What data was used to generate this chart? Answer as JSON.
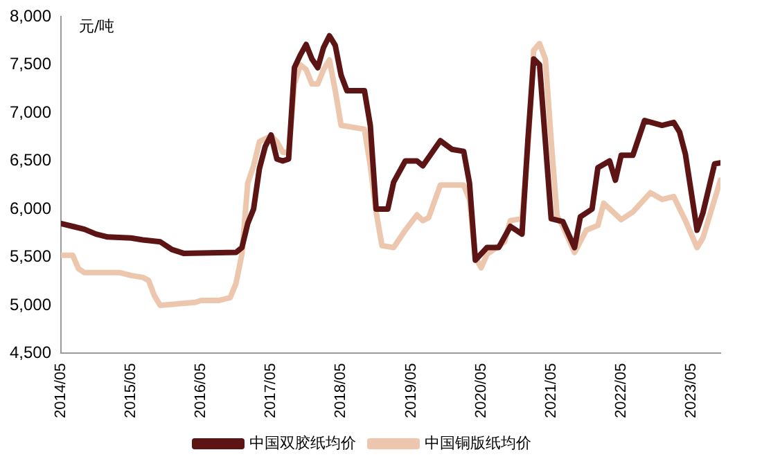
{
  "chart_data": {
    "type": "line",
    "ylabel": "元/吨",
    "legend": "bottom",
    "grid": false,
    "marker": "none",
    "line_style": "solid",
    "xlim": [
      "2014-05",
      "2023-10"
    ],
    "xticks": [
      {
        "value": "2014-05",
        "label": "2014/05"
      },
      {
        "value": "2015-05",
        "label": "2015/05"
      },
      {
        "value": "2016-05",
        "label": "2016/05"
      },
      {
        "value": "2017-05",
        "label": "2017/05"
      },
      {
        "value": "2018-05",
        "label": "2018/05"
      },
      {
        "value": "2019-05",
        "label": "2019/05"
      },
      {
        "value": "2020-05",
        "label": "2020/05"
      },
      {
        "value": "2021-05",
        "label": "2021/05"
      },
      {
        "value": "2022-05",
        "label": "2022/05"
      },
      {
        "value": "2023-05",
        "label": "2023/05"
      }
    ],
    "ylim": [
      4500,
      8000
    ],
    "yticks": [
      {
        "value": 4500,
        "label": "4,500"
      },
      {
        "value": 5000,
        "label": "5,000"
      },
      {
        "value": 5500,
        "label": "5,500"
      },
      {
        "value": 6000,
        "label": "6,000"
      },
      {
        "value": 6500,
        "label": "6,500"
      },
      {
        "value": 7000,
        "label": "7,000"
      },
      {
        "value": 7500,
        "label": "7,500"
      },
      {
        "value": 8000,
        "label": "8,000"
      }
    ],
    "series": [
      {
        "name": "中国双胶纸均价",
        "color": "#5c1414",
        "x": [
          "2014-05",
          "2014-07",
          "2014-09",
          "2014-11",
          "2015-01",
          "2015-05",
          "2015-07",
          "2015-10",
          "2015-12",
          "2016-02",
          "2016-11",
          "2016-12",
          "2017-01",
          "2017-02",
          "2017-03",
          "2017-04",
          "2017-05",
          "2017-06",
          "2017-07",
          "2017-08",
          "2017-09",
          "2017-10",
          "2017-11",
          "2017-12",
          "2018-01",
          "2018-02",
          "2018-03",
          "2018-04",
          "2018-05",
          "2018-06",
          "2018-09",
          "2018-10",
          "2018-11",
          "2019-01",
          "2019-02",
          "2019-04",
          "2019-06",
          "2019-07",
          "2019-10",
          "2019-12",
          "2020-02",
          "2020-03",
          "2020-04",
          "2020-06",
          "2020-08",
          "2020-10",
          "2020-12",
          "2021-01",
          "2021-02",
          "2021-03",
          "2021-05",
          "2021-07",
          "2021-09",
          "2021-10",
          "2021-12",
          "2022-01",
          "2022-03",
          "2022-04",
          "2022-05",
          "2022-07",
          "2022-09",
          "2022-12",
          "2023-02",
          "2023-03",
          "2023-04",
          "2023-06",
          "2023-07",
          "2023-09",
          "2023-10"
        ],
        "values": [
          5850,
          5820,
          5790,
          5740,
          5710,
          5700,
          5680,
          5660,
          5580,
          5540,
          5550,
          5600,
          5850,
          6000,
          6420,
          6650,
          6770,
          6520,
          6500,
          6520,
          7470,
          7600,
          7710,
          7560,
          7470,
          7680,
          7800,
          7700,
          7390,
          7230,
          7230,
          6870,
          6000,
          6000,
          6280,
          6500,
          6500,
          6450,
          6710,
          6620,
          6600,
          6270,
          5470,
          5600,
          5600,
          5820,
          5740,
          6710,
          7560,
          7500,
          5900,
          5870,
          5600,
          5920,
          6000,
          6430,
          6500,
          6300,
          6560,
          6560,
          6920,
          6870,
          6900,
          6800,
          6570,
          5780,
          5960,
          6470,
          6480
        ]
      },
      {
        "name": "中国铜版纸均价",
        "color": "#ecc7ad",
        "x": [
          "2014-05",
          "2014-07",
          "2014-08",
          "2014-09",
          "2015-03",
          "2015-05",
          "2015-07",
          "2015-08",
          "2015-09",
          "2015-10",
          "2016-04",
          "2016-05",
          "2016-08",
          "2016-10",
          "2016-11",
          "2016-12",
          "2017-01",
          "2017-02",
          "2017-03",
          "2017-05",
          "2017-06",
          "2017-07",
          "2017-08",
          "2017-09",
          "2017-10",
          "2017-11",
          "2017-12",
          "2018-01",
          "2018-02",
          "2018-03",
          "2018-04",
          "2018-05",
          "2018-09",
          "2018-10",
          "2018-11",
          "2018-12",
          "2019-02",
          "2019-04",
          "2019-06",
          "2019-07",
          "2019-08",
          "2019-10",
          "2020-02",
          "2020-03",
          "2020-04",
          "2020-05",
          "2020-06",
          "2020-09",
          "2020-10",
          "2020-12",
          "2021-01",
          "2021-02",
          "2021-03",
          "2021-04",
          "2021-05",
          "2021-06",
          "2021-07",
          "2021-09",
          "2021-11",
          "2022-01",
          "2022-02",
          "2022-05",
          "2022-07",
          "2022-10",
          "2022-12",
          "2023-02",
          "2023-04",
          "2023-06",
          "2023-07",
          "2023-10"
        ],
        "values": [
          5520,
          5520,
          5380,
          5340,
          5340,
          5310,
          5290,
          5260,
          5100,
          5000,
          5030,
          5050,
          5050,
          5080,
          5230,
          5530,
          6270,
          6450,
          6700,
          6760,
          6700,
          6590,
          6590,
          7300,
          7500,
          7450,
          7300,
          7300,
          7450,
          7550,
          7230,
          6870,
          6830,
          6450,
          5970,
          5620,
          5600,
          5780,
          5940,
          5880,
          5910,
          6250,
          6250,
          6100,
          5500,
          5390,
          5530,
          5660,
          5880,
          5900,
          6630,
          7650,
          7720,
          7560,
          6710,
          5930,
          5820,
          5550,
          5780,
          5830,
          6060,
          5890,
          5970,
          6170,
          6100,
          6130,
          5880,
          5600,
          5700,
          6300
        ]
      }
    ]
  }
}
